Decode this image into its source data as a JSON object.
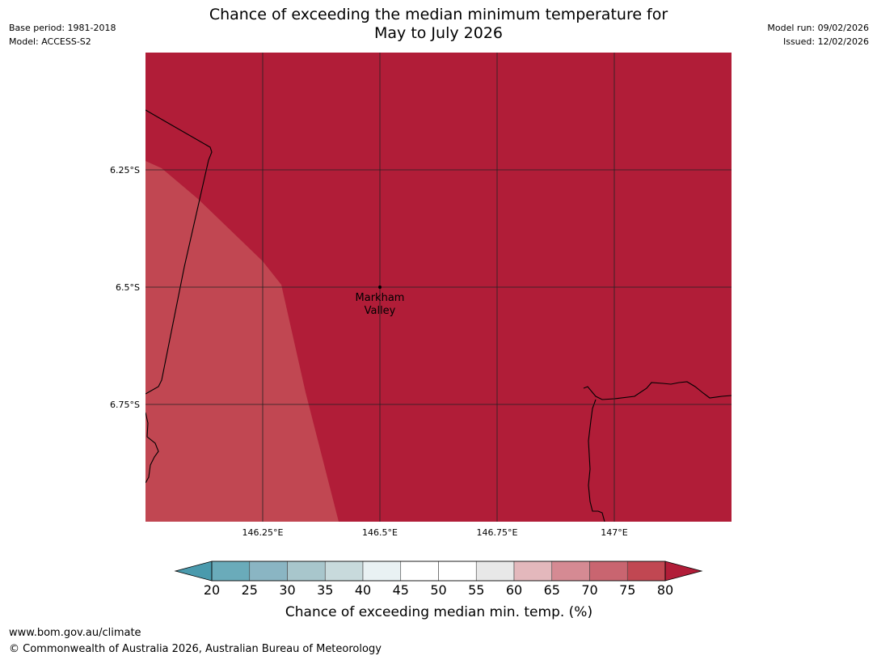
{
  "header": {
    "base_period": "Base period: 1981-2018",
    "model": "Model: ACCESS-S2",
    "model_run": "Model run: 09/02/2026",
    "issued": "Issued: 12/02/2026",
    "title_line1": "Chance of exceeding the median minimum temperature for",
    "title_line2": "May to July 2026"
  },
  "map": {
    "lat_ticks": [
      "6.25°S",
      "6.5°S",
      "6.75°S"
    ],
    "lon_ticks": [
      "146.25°E",
      "146.5°E",
      "146.75°E",
      "147°E"
    ],
    "place": {
      "name_line1": "Markham",
      "name_line2": "Valley",
      "lon": 146.5,
      "lat": -6.5
    },
    "extent": {
      "lon_min": 146.0,
      "lon_max": 147.25,
      "lat_min": -7.0,
      "lat_max": -6.0
    },
    "regions": [
      {
        "category": "75-80",
        "color": "#c14752",
        "label": "western zone"
      },
      {
        "category": ">80",
        "color": "#b11d38",
        "label": "remaining area"
      }
    ]
  },
  "legend": {
    "ticks": [
      "20",
      "25",
      "30",
      "35",
      "40",
      "45",
      "50",
      "55",
      "60",
      "65",
      "70",
      "75",
      "80"
    ],
    "colors": [
      "#6aabba",
      "#8ab5c3",
      "#a8c6cc",
      "#c8dadc",
      "#e9f1f3",
      "#ffffff",
      "#ffffff",
      "#e8e8e8",
      "#e3b8bc",
      "#d58a93",
      "#c96570",
      "#c14752"
    ],
    "low_extend_color": "#4a9aad",
    "high_extend_color": "#b11d38",
    "label": "Chance of exceeding median min. temp. (%)"
  },
  "footer": {
    "url": "www.bom.gov.au/climate",
    "copyright": "© Commonwealth of Australia 2026, Australian Bureau of Meteorology"
  }
}
